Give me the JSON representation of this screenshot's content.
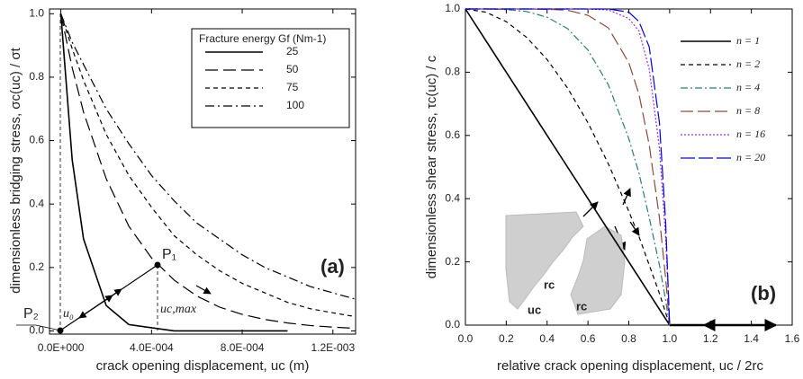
{
  "chart_data": [
    {
      "type": "line",
      "x_label": "crack opening displacement, uc (m)",
      "y_label": "dimensionless bridging stress, σc(uc) / σt",
      "legend_title": "Fracture energy Gf (Nm-1)",
      "x": [
        0,
        5e-05,
        0.0001,
        0.0002,
        0.0003,
        0.0004,
        0.0005,
        0.0006,
        0.0007,
        0.0008,
        0.0009,
        0.001,
        0.0011,
        0.0012,
        0.0013
      ],
      "series": [
        {
          "name": "25",
          "color": "#000000",
          "values": [
            1,
            0.54,
            0.29,
            0.08,
            0.02,
            0.01,
            0,
            0,
            0,
            0,
            0,
            0,
            null,
            null,
            null
          ]
        },
        {
          "name": "50",
          "color": "#000000",
          "values": [
            1,
            0.83,
            0.69,
            0.48,
            0.33,
            0.23,
            0.16,
            0.11,
            0.075,
            0.052,
            0.036,
            0.025,
            0.017,
            0.012,
            0.008
          ]
        },
        {
          "name": "75",
          "color": "#000000",
          "values": [
            1,
            0.89,
            0.79,
            0.62,
            0.49,
            0.39,
            0.3,
            0.24,
            0.19,
            0.15,
            0.12,
            0.09,
            0.07,
            0.057,
            0.045
          ]
        },
        {
          "name": "100",
          "color": "#000000",
          "values": [
            1,
            0.91,
            0.84,
            0.7,
            0.59,
            0.49,
            0.41,
            0.34,
            0.29,
            0.24,
            0.2,
            0.17,
            0.14,
            0.12,
            0.1
          ]
        }
      ],
      "xlim": [
        -5e-05,
        0.0013
      ],
      "ylim": [
        -0.01,
        1.015
      ],
      "xticks": [
        {
          "value": 0,
          "label": "0.0E+000"
        },
        {
          "value": 0.0004,
          "label": "4.0E-004"
        },
        {
          "value": 0.0008,
          "label": "8.0E-004"
        },
        {
          "value": 0.0012,
          "label": "1.2E-003"
        }
      ],
      "yticks": [
        {
          "value": 0,
          "label": "0.0"
        },
        0.2,
        0.4,
        0.6,
        0.8,
        {
          "value": 1,
          "label": "1.0"
        }
      ],
      "annotations": [
        "P₁",
        "P₂",
        "u₀",
        "uc,max",
        "(a)"
      ]
    },
    {
      "type": "line",
      "x_label": "relative crack opening displacement, uc / 2rc",
      "y_label": "dimensionless shear stress, τc(uc) / c",
      "x": [
        0,
        0.1,
        0.2,
        0.3,
        0.4,
        0.5,
        0.6,
        0.7,
        0.8,
        0.85,
        0.9,
        0.95,
        0.98,
        1
      ],
      "series": [
        {
          "name": "n = 1",
          "color": "#000000",
          "values": [
            1,
            0.9,
            0.8,
            0.7,
            0.6,
            0.5,
            0.4,
            0.3,
            0.2,
            0.15,
            0.1,
            0.05,
            0.02,
            0
          ]
        },
        {
          "name": "n = 2",
          "color": "#000000",
          "values": [
            1,
            0.99,
            0.96,
            0.91,
            0.84,
            0.75,
            0.64,
            0.51,
            0.36,
            0.28,
            0.19,
            0.1,
            0.04,
            0
          ]
        },
        {
          "name": "n = 4",
          "color": "#2e7d6e",
          "values": [
            1,
            1,
            0.998,
            0.992,
            0.974,
            0.938,
            0.87,
            0.76,
            0.59,
            0.48,
            0.34,
            0.19,
            0.08,
            0
          ]
        },
        {
          "name": "n = 8",
          "color": "#8b4a3c",
          "values": [
            1,
            1,
            1,
            1,
            0.999,
            0.996,
            0.98,
            0.94,
            0.83,
            0.73,
            0.57,
            0.34,
            0.15,
            0
          ]
        },
        {
          "name": "n = 16",
          "color": "#9b30c8",
          "values": [
            1,
            1,
            1,
            1,
            1,
            1,
            1,
            0.997,
            0.97,
            0.93,
            0.81,
            0.56,
            0.28,
            0
          ]
        },
        {
          "name": "n = 20",
          "color": "#0000e0",
          "values": [
            1,
            1,
            1,
            1,
            1,
            1,
            1,
            1,
            0.99,
            0.96,
            0.88,
            0.64,
            0.33,
            0
          ]
        }
      ],
      "xlim": [
        0,
        1.6
      ],
      "ylim": [
        0,
        1
      ],
      "xticks": [
        {
          "value": 0,
          "label": "0.0"
        },
        0.2,
        0.4,
        0.6,
        0.8,
        {
          "value": 1,
          "label": "1.0"
        },
        1.2,
        1.4,
        1.6
      ],
      "yticks": [
        {
          "value": 0,
          "label": "0.0"
        },
        0.2,
        0.4,
        0.6,
        0.8,
        {
          "value": 1,
          "label": "1.0"
        }
      ],
      "annotations": [
        "(b)",
        "rc",
        "rc",
        "uc"
      ]
    }
  ]
}
